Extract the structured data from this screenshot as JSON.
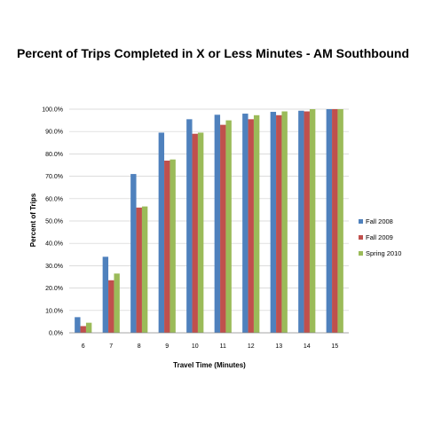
{
  "chart_data": {
    "type": "bar",
    "title": "Percent of Trips Completed in X or Less Minutes - AM Southbound",
    "xlabel": "Travel Time (Minutes)",
    "ylabel": "Percent of Trips",
    "categories": [
      "6",
      "7",
      "8",
      "9",
      "10",
      "11",
      "12",
      "13",
      "14",
      "15"
    ],
    "ylim": [
      0,
      100
    ],
    "y_ticks": [
      "0.0%",
      "10.0%",
      "20.0%",
      "30.0%",
      "40.0%",
      "50.0%",
      "60.0%",
      "70.0%",
      "80.0%",
      "90.0%",
      "100.0%"
    ],
    "grid": true,
    "legend_position": "right",
    "series": [
      {
        "name": "Fall 2008",
        "color": "#4f81bd",
        "values": [
          7.0,
          34.0,
          71.0,
          89.5,
          95.5,
          97.5,
          98.0,
          98.8,
          99.3,
          100.0
        ]
      },
      {
        "name": "Fall 2009",
        "color": "#c0504d",
        "values": [
          3.0,
          23.5,
          56.0,
          77.0,
          89.0,
          93.0,
          95.5,
          97.3,
          99.0,
          100.0
        ]
      },
      {
        "name": "Spring 2010",
        "color": "#9bbb59",
        "values": [
          4.5,
          26.5,
          56.5,
          77.5,
          89.5,
          95.0,
          97.3,
          99.0,
          100.0,
          100.0
        ]
      }
    ]
  }
}
